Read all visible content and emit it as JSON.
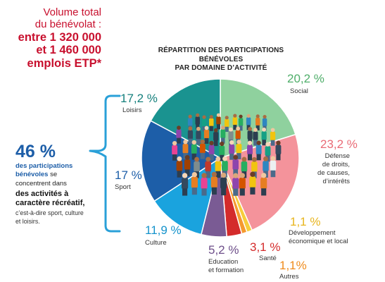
{
  "volume": {
    "line1": "Volume total",
    "line2": "du bénévolat :",
    "line3": "entre 1 320 000",
    "line4": "et 1 460 000",
    "line5": "emplois ETP*"
  },
  "stat": {
    "big": "46 %",
    "blue": "des participations bénévoles",
    "after_blue": " se concentrent dans",
    "bold": "des activités à caractère récréatif",
    "after_bold": ",",
    "small": "c’est-à-dire sport, culture et loisirs."
  },
  "colors": {
    "accent_red": "#c8102e",
    "accent_blue": "#1d5ea8",
    "bracket": "#2aa0d8"
  },
  "chart_data": {
    "type": "pie",
    "title": "RÉPARTITION DES PARTICIPATIONS BÉNÉVOLES PAR DOMAINE D’ACTIVITÉ",
    "title_line1": "RÉPARTITION DES PARTICIPATIONS BÉNÉVOLES",
    "title_line2": "PAR DOMAINE D’ACTIVITÉ",
    "center_image": "crowd-of-people",
    "slices": [
      {
        "key": "social",
        "label_lines": [
          "Social"
        ],
        "pct_label": "20,2 %",
        "value": 20.2,
        "color": "#8fd19e",
        "text_color": "#4fae6a"
      },
      {
        "key": "defense",
        "label_lines": [
          "Défense",
          "de droits,",
          "de causes,",
          "d’intérêts"
        ],
        "pct_label": "23,2 %",
        "value": 23.2,
        "color": "#f4939b",
        "text_color": "#e96b76"
      },
      {
        "key": "developpement",
        "label_lines": [
          "Développement",
          "économique et local"
        ],
        "pct_label": "1,1 %",
        "value": 1.1,
        "color": "#f7cd3b",
        "text_color": "#e8b51d"
      },
      {
        "key": "autres",
        "label_lines": [
          "Autres"
        ],
        "pct_label": "1,1%",
        "value": 1.1,
        "color": "#f59a2e",
        "text_color": "#ef8b1c"
      },
      {
        "key": "sante",
        "label_lines": [
          "Santé"
        ],
        "pct_label": "3,1 %",
        "value": 3.1,
        "color": "#d42b2b",
        "text_color": "#d42b2b"
      },
      {
        "key": "education",
        "label_lines": [
          "Education",
          "et formation"
        ],
        "pct_label": "5,2 %",
        "value": 5.2,
        "color": "#7a5b94",
        "text_color": "#6e4f8a"
      },
      {
        "key": "culture",
        "label_lines": [
          "Culture"
        ],
        "pct_label": "11,9 %",
        "value": 11.9,
        "color": "#1aa3de",
        "text_color": "#1593cc"
      },
      {
        "key": "sport",
        "label_lines": [
          "Sport"
        ],
        "pct_label": "17 %",
        "value": 17,
        "color": "#1d5ea8",
        "text_color": "#1d5ea8"
      },
      {
        "key": "loisirs",
        "label_lines": [
          "Loisirs"
        ],
        "pct_label": "17,2 %",
        "value": 17.2,
        "color": "#1a9390",
        "text_color": "#16807d"
      }
    ]
  }
}
